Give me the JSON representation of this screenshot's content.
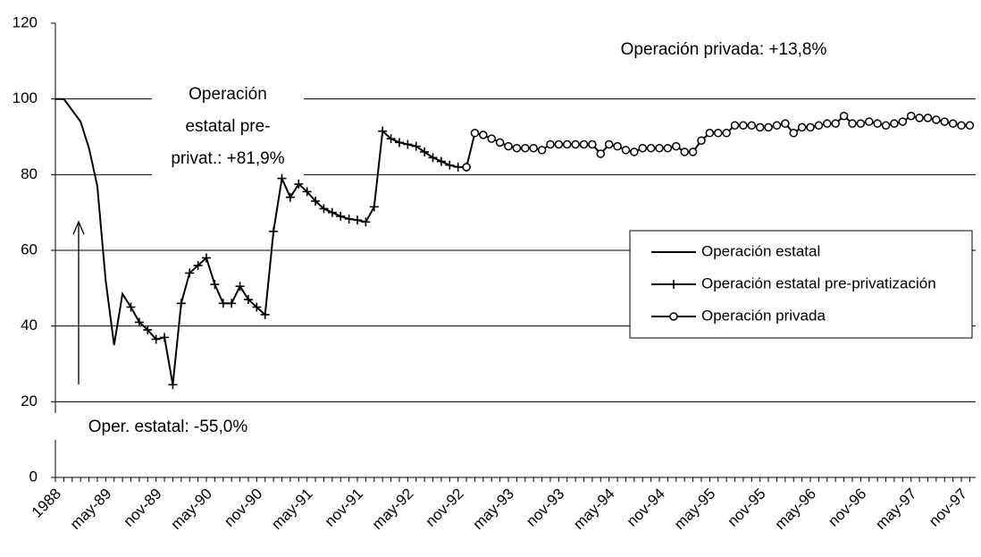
{
  "chart_data": {
    "type": "line",
    "categories": [
      "1988",
      null,
      null,
      null,
      null,
      null,
      "may-89",
      null,
      null,
      null,
      null,
      null,
      "nov-89",
      null,
      null,
      null,
      null,
      null,
      "may-90",
      null,
      null,
      null,
      null,
      null,
      "nov-90",
      null,
      null,
      null,
      null,
      null,
      "may-91",
      null,
      null,
      null,
      null,
      null,
      "nov-91",
      null,
      null,
      null,
      null,
      null,
      "may-92",
      null,
      null,
      null,
      null,
      null,
      "nov-92",
      null,
      null,
      null,
      null,
      null,
      "may-93",
      null,
      null,
      null,
      null,
      null,
      "nov-93",
      null,
      null,
      null,
      null,
      null,
      "may-94",
      null,
      null,
      null,
      null,
      null,
      "nov-94",
      null,
      null,
      null,
      null,
      null,
      "may-95",
      null,
      null,
      null,
      null,
      null,
      "nov-95",
      null,
      null,
      null,
      null,
      null,
      "may-96",
      null,
      null,
      null,
      null,
      null,
      "nov-96",
      null,
      null,
      null,
      null,
      null,
      "may-97",
      null,
      null,
      null,
      null,
      null,
      "nov-97",
      null
    ],
    "series": [
      {
        "name": "Operación estatal",
        "color": "#000000",
        "marker": "none",
        "values": [
          100,
          100,
          97,
          94,
          87,
          77,
          52,
          35,
          48.5,
          45,
          null,
          null,
          null,
          null,
          null,
          null,
          null,
          null,
          null,
          null,
          null,
          null,
          null,
          null,
          null,
          null,
          null,
          null,
          null,
          null,
          null,
          null,
          null,
          null,
          null,
          null,
          null,
          null,
          null,
          null,
          null,
          null,
          null,
          null,
          null,
          null,
          null,
          null,
          null,
          null,
          null,
          null,
          null,
          null,
          null,
          null,
          null,
          null,
          null,
          null,
          null,
          null,
          null,
          null,
          null,
          null,
          null,
          null,
          null,
          null,
          null,
          null,
          null,
          null,
          null,
          null,
          null,
          null,
          null,
          null,
          null,
          null,
          null,
          null,
          null,
          null,
          null,
          null,
          null,
          null,
          null,
          null,
          null,
          null,
          null,
          null,
          null,
          null,
          null,
          null,
          null,
          null,
          null,
          null,
          null,
          null,
          null,
          null,
          null,
          null
        ]
      },
      {
        "name": "Operación estatal pre-privatización",
        "color": "#000000",
        "marker": "plus",
        "values": [
          null,
          null,
          null,
          null,
          null,
          null,
          null,
          null,
          null,
          45,
          41,
          39,
          36.5,
          37,
          24.5,
          46,
          54,
          56,
          58,
          51,
          46,
          46,
          50.5,
          47,
          45,
          43,
          65,
          79,
          74,
          77.5,
          75.5,
          73,
          71,
          70,
          69,
          68.3,
          68,
          67.5,
          71.5,
          91.5,
          89.5,
          88.5,
          88,
          87.5,
          86,
          84.5,
          83.5,
          82.5,
          82,
          82,
          null,
          null,
          null,
          null,
          null,
          null,
          null,
          null,
          null,
          null,
          null,
          null,
          null,
          null,
          null,
          null,
          null,
          null,
          null,
          null,
          null,
          null,
          null,
          null,
          null,
          null,
          null,
          null,
          null,
          null,
          null,
          null,
          null,
          null,
          null,
          null,
          null,
          null,
          null,
          null,
          null,
          null,
          null,
          null,
          null,
          null,
          null,
          null,
          null,
          null,
          null,
          null,
          null,
          null,
          null,
          null,
          null,
          null,
          null,
          null
        ]
      },
      {
        "name": "Operación privada",
        "color": "#000000",
        "marker": "circle",
        "values": [
          null,
          null,
          null,
          null,
          null,
          null,
          null,
          null,
          null,
          null,
          null,
          null,
          null,
          null,
          null,
          null,
          null,
          null,
          null,
          null,
          null,
          null,
          null,
          null,
          null,
          null,
          null,
          null,
          null,
          null,
          null,
          null,
          null,
          null,
          null,
          null,
          null,
          null,
          null,
          null,
          null,
          null,
          null,
          null,
          null,
          null,
          null,
          null,
          null,
          82,
          91,
          90.5,
          89.5,
          88.5,
          87.5,
          87,
          87,
          87,
          86.5,
          88,
          88,
          88,
          88,
          88,
          88,
          85.5,
          88,
          87.5,
          86.5,
          86,
          87,
          87,
          87,
          87,
          87.5,
          86,
          86,
          89,
          91,
          91,
          91,
          93,
          93,
          93,
          92.5,
          92.5,
          93,
          93.5,
          91,
          92.5,
          92.5,
          93,
          93.5,
          93.5,
          95.5,
          93.5,
          93.5,
          94,
          93.5,
          93,
          93.5,
          94,
          95.5,
          95,
          95,
          94.5,
          94,
          93.5,
          93,
          93
        ]
      }
    ],
    "ylim": [
      0,
      120
    ],
    "yticks": [
      0,
      20,
      40,
      60,
      80,
      100,
      120
    ],
    "grid": true,
    "legend": "right",
    "annotations": [
      {
        "lines": [
          "Operación",
          "estatal pre-",
          "privat.: +81,9%"
        ]
      },
      {
        "lines": [
          "Operación privada: +13,8%"
        ]
      },
      {
        "lines": [
          "Oper. estatal: -55,0%"
        ]
      }
    ]
  }
}
